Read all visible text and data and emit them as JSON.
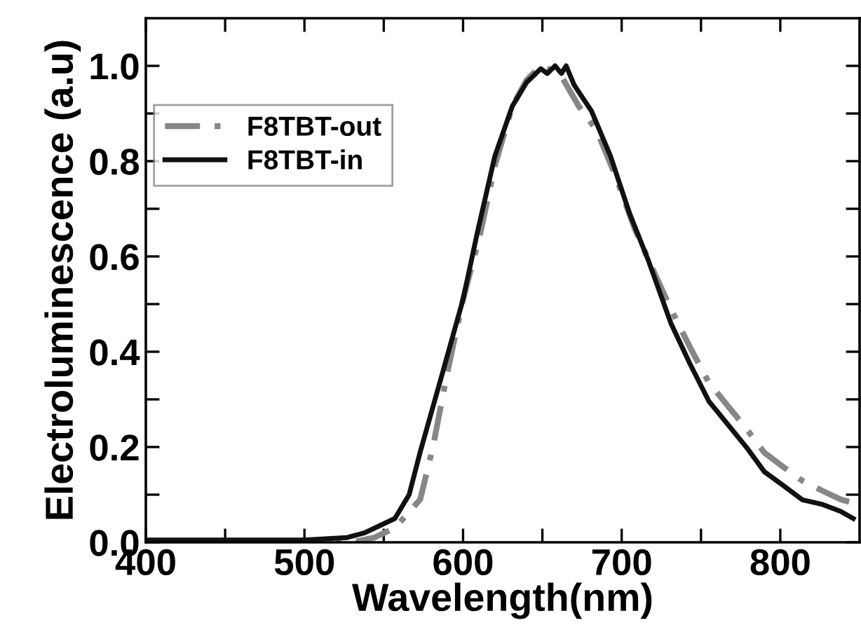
{
  "chart_data": {
    "type": "line",
    "xlabel": "Wavelength(nm)",
    "ylabel": "Electroluminescence (a.u)",
    "xlim": [
      400,
      850
    ],
    "ylim": [
      0,
      1.1
    ],
    "xticks": [
      400,
      {
        "value": 450,
        "label": null
      },
      500,
      {
        "value": 550,
        "label": null
      },
      600,
      {
        "value": 650,
        "label": null
      },
      700,
      {
        "value": 750,
        "label": null
      },
      800
    ],
    "yticks": [
      "0.0",
      {
        "value": 0.1,
        "label": null
      },
      0.2,
      {
        "value": 0.3,
        "label": null
      },
      0.4,
      {
        "value": 0.5,
        "label": null
      },
      0.6,
      {
        "value": 0.7,
        "label": null
      },
      0.8,
      {
        "value": 0.9,
        "label": null
      },
      "1.0"
    ],
    "legend": "upper left",
    "grid": false,
    "marker": "none",
    "series": [
      {
        "name": "F8TBT-out",
        "color": "#878787",
        "line_style": "dashdot",
        "x": [
          400,
          450,
          500,
          530,
          544,
          557,
          573,
          581,
          590,
          600,
          611,
          620,
          631,
          640,
          649,
          661,
          673,
          684,
          696,
          708,
          720,
          731,
          743,
          755,
          767,
          779,
          790,
          802,
          814,
          826,
          838,
          849
        ],
        "values": [
          0.0,
          0.0,
          0.0,
          0.0,
          0.01,
          0.03,
          0.09,
          0.2,
          0.355,
          0.51,
          0.65,
          0.79,
          0.915,
          0.97,
          1.0,
          0.984,
          0.915,
          0.866,
          0.77,
          0.66,
          0.57,
          0.49,
          0.41,
          0.335,
          0.286,
          0.237,
          0.188,
          0.158,
          0.129,
          0.109,
          0.09,
          0.08
        ]
      },
      {
        "name": "F8TBT-in",
        "color": "#111111",
        "line_style": "solid",
        "x": [
          400,
          450,
          500,
          527,
          538,
          557,
          566,
          573,
          587,
          600,
          609,
          620,
          631,
          640,
          649,
          653,
          658,
          662,
          665,
          670,
          681,
          693,
          705,
          717,
          731,
          743,
          755,
          767,
          779,
          790,
          802,
          814,
          826,
          838,
          846
        ],
        "values": [
          0.005,
          0.005,
          0.005,
          0.01,
          0.02,
          0.05,
          0.1,
          0.19,
          0.355,
          0.51,
          0.65,
          0.81,
          0.915,
          0.965,
          0.994,
          0.984,
          1.0,
          0.984,
          1.0,
          0.96,
          0.905,
          0.81,
          0.69,
          0.59,
          0.46,
          0.375,
          0.296,
          0.247,
          0.198,
          0.148,
          0.119,
          0.089,
          0.08,
          0.065,
          0.05
        ]
      }
    ]
  }
}
